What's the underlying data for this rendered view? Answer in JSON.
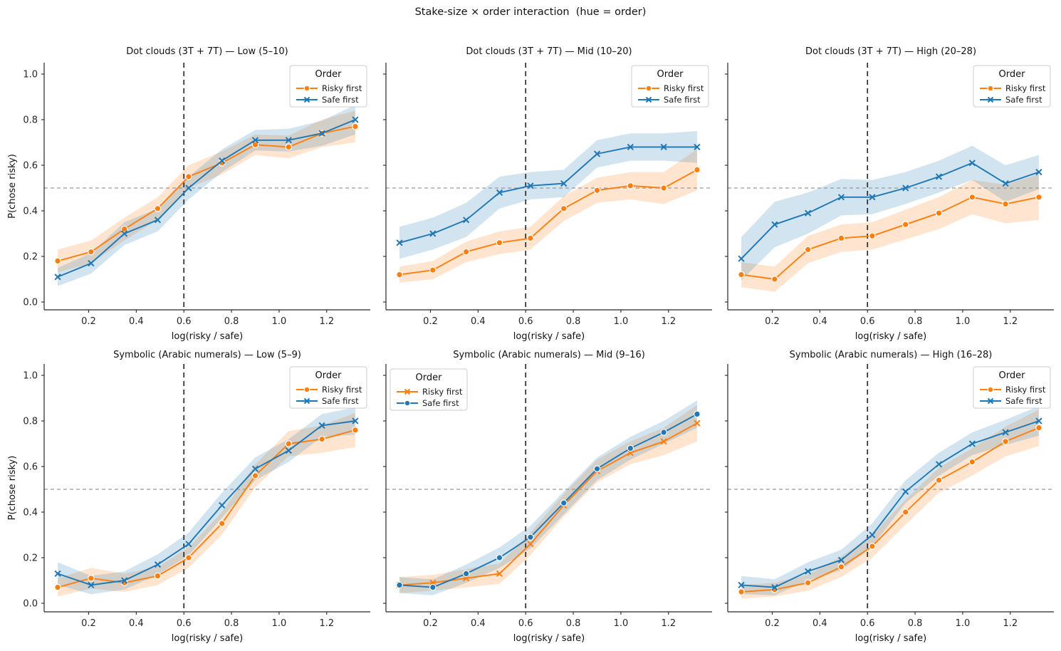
{
  "figure": {
    "suptitle": "Stake-size × order interaction  (hue = order)",
    "xlabel": "log(risky / safe)",
    "ylabel": "P(chose risky)",
    "xtick_values": [
      0.2,
      0.4,
      0.6,
      0.8,
      1.0,
      1.2
    ],
    "xtick_labels": [
      "0.2",
      "0.4",
      "0.6",
      "0.8",
      "1.0",
      "1.2"
    ],
    "ytick_values": [
      0.0,
      0.2,
      0.4,
      0.6,
      0.8,
      1.0
    ],
    "ytick_labels": [
      "0.0",
      "0.2",
      "0.4",
      "0.6",
      "0.8",
      "1.0"
    ],
    "xlim": [
      0.013,
      1.383
    ],
    "ylim": [
      -0.034,
      1.05
    ],
    "hline": 0.5,
    "vline": 0.6,
    "grid": false,
    "legend_title": "Order",
    "legend_items": [
      "Risky first",
      "Safe first"
    ],
    "colors": {
      "risky_first": "#ff7f0e",
      "safe_first": "#1f77b4",
      "vline": "#2b2b2b",
      "hline": "#999999",
      "spine": "#262626"
    }
  },
  "chart_data": [
    {
      "type": "line",
      "title": "Dot clouds (3T + 7T) — Low (5–10)",
      "xlabel": "log(risky / safe)",
      "ylabel": "P(chose risky)",
      "legend_loc": "upper right",
      "x": [
        0.07,
        0.21,
        0.35,
        0.49,
        0.62,
        0.76,
        0.9,
        1.04,
        1.18,
        1.32
      ],
      "series": [
        {
          "name": "Risky first",
          "color": "#ff7f0e",
          "marker": "o",
          "values": [
            0.18,
            0.22,
            0.32,
            0.41,
            0.55,
            0.61,
            0.69,
            0.68,
            0.74,
            0.77
          ],
          "ci_halfwidth": [
            0.05,
            0.05,
            0.05,
            0.05,
            0.05,
            0.05,
            0.045,
            0.05,
            0.06,
            0.07
          ]
        },
        {
          "name": "Safe first",
          "color": "#1f77b4",
          "marker": "x",
          "values": [
            0.11,
            0.17,
            0.3,
            0.36,
            0.5,
            0.62,
            0.71,
            0.71,
            0.74,
            0.8
          ],
          "ci_halfwidth": [
            0.04,
            0.045,
            0.05,
            0.05,
            0.05,
            0.05,
            0.045,
            0.05,
            0.055,
            0.065
          ]
        }
      ]
    },
    {
      "type": "line",
      "title": "Dot clouds (3T + 7T) — Mid (10–20)",
      "xlabel": "log(risky / safe)",
      "ylabel": "P(chose risky)",
      "legend_loc": "upper right",
      "x": [
        0.07,
        0.21,
        0.35,
        0.49,
        0.62,
        0.76,
        0.9,
        1.04,
        1.18,
        1.32
      ],
      "series": [
        {
          "name": "Risky first",
          "color": "#ff7f0e",
          "marker": "o",
          "values": [
            0.12,
            0.14,
            0.22,
            0.26,
            0.28,
            0.41,
            0.49,
            0.51,
            0.5,
            0.58
          ],
          "ci_halfwidth": [
            0.035,
            0.04,
            0.045,
            0.05,
            0.05,
            0.055,
            0.055,
            0.06,
            0.07,
            0.09
          ]
        },
        {
          "name": "Safe first",
          "color": "#1f77b4",
          "marker": "x",
          "values": [
            0.26,
            0.3,
            0.36,
            0.48,
            0.51,
            0.52,
            0.65,
            0.68,
            0.68,
            0.68
          ],
          "ci_halfwidth": [
            0.07,
            0.07,
            0.075,
            0.07,
            0.06,
            0.06,
            0.06,
            0.06,
            0.06,
            0.07
          ]
        }
      ]
    },
    {
      "type": "line",
      "title": "Dot clouds (3T + 7T) — High (20–28)",
      "xlabel": "log(risky / safe)",
      "ylabel": "P(chose risky)",
      "legend_loc": "upper right",
      "x": [
        0.07,
        0.21,
        0.35,
        0.49,
        0.62,
        0.76,
        0.9,
        1.04,
        1.18,
        1.32
      ],
      "series": [
        {
          "name": "Risky first",
          "color": "#ff7f0e",
          "marker": "o",
          "values": [
            0.12,
            0.1,
            0.23,
            0.28,
            0.29,
            0.34,
            0.39,
            0.46,
            0.43,
            0.46
          ],
          "ci_halfwidth": [
            0.055,
            0.055,
            0.06,
            0.06,
            0.06,
            0.065,
            0.07,
            0.075,
            0.085,
            0.1
          ]
        },
        {
          "name": "Safe first",
          "color": "#1f77b4",
          "marker": "x",
          "values": [
            0.19,
            0.34,
            0.39,
            0.46,
            0.46,
            0.5,
            0.55,
            0.61,
            0.52,
            0.57
          ],
          "ci_halfwidth": [
            0.095,
            0.1,
            0.09,
            0.08,
            0.075,
            0.07,
            0.07,
            0.075,
            0.08,
            0.075
          ]
        }
      ]
    },
    {
      "type": "line",
      "title": "Symbolic (Arabic numerals) — Low (5–9)",
      "xlabel": "log(risky / safe)",
      "ylabel": "P(chose risky)",
      "legend_loc": "upper right",
      "x": [
        0.07,
        0.21,
        0.35,
        0.49,
        0.62,
        0.76,
        0.9,
        1.04,
        1.18,
        1.32
      ],
      "series": [
        {
          "name": "Risky first",
          "color": "#ff7f0e",
          "marker": "o",
          "values": [
            0.07,
            0.11,
            0.09,
            0.12,
            0.2,
            0.35,
            0.56,
            0.7,
            0.72,
            0.76
          ],
          "ci_halfwidth": [
            0.04,
            0.045,
            0.04,
            0.04,
            0.045,
            0.05,
            0.05,
            0.055,
            0.06,
            0.075
          ]
        },
        {
          "name": "Safe first",
          "color": "#1f77b4",
          "marker": "x",
          "values": [
            0.13,
            0.08,
            0.1,
            0.17,
            0.26,
            0.43,
            0.59,
            0.67,
            0.78,
            0.8
          ],
          "ci_halfwidth": [
            0.05,
            0.04,
            0.04,
            0.045,
            0.05,
            0.055,
            0.05,
            0.05,
            0.05,
            0.06
          ]
        }
      ]
    },
    {
      "type": "line",
      "title": "Symbolic (Arabic numerals) — Mid (9–16)",
      "xlabel": "log(risky / safe)",
      "ylabel": "P(chose risky)",
      "legend_loc": "upper left",
      "x": [
        0.07,
        0.21,
        0.35,
        0.49,
        0.62,
        0.76,
        0.9,
        1.04,
        1.18,
        1.32
      ],
      "series": [
        {
          "name": "Risky first",
          "color": "#ff7f0e",
          "marker": "x",
          "values": [
            0.08,
            0.09,
            0.11,
            0.13,
            0.26,
            0.43,
            0.58,
            0.66,
            0.71,
            0.79
          ],
          "ci_halfwidth": [
            0.035,
            0.035,
            0.04,
            0.045,
            0.05,
            0.05,
            0.05,
            0.05,
            0.06,
            0.08
          ]
        },
        {
          "name": "Safe first",
          "color": "#1f77b4",
          "marker": "o",
          "values": [
            0.08,
            0.07,
            0.13,
            0.2,
            0.29,
            0.44,
            0.59,
            0.68,
            0.75,
            0.83
          ],
          "ci_halfwidth": [
            0.035,
            0.035,
            0.04,
            0.045,
            0.05,
            0.05,
            0.05,
            0.05,
            0.05,
            0.06
          ]
        }
      ]
    },
    {
      "type": "line",
      "title": "Symbolic (Arabic numerals) — High (16–28)",
      "xlabel": "log(risky / safe)",
      "ylabel": "P(chose risky)",
      "legend_loc": "upper right",
      "x": [
        0.07,
        0.21,
        0.35,
        0.49,
        0.62,
        0.76,
        0.9,
        1.04,
        1.18,
        1.32
      ],
      "series": [
        {
          "name": "Risky first",
          "color": "#ff7f0e",
          "marker": "o",
          "values": [
            0.05,
            0.06,
            0.09,
            0.16,
            0.25,
            0.4,
            0.54,
            0.62,
            0.71,
            0.77
          ],
          "ci_halfwidth": [
            0.03,
            0.03,
            0.035,
            0.045,
            0.05,
            0.055,
            0.055,
            0.06,
            0.065,
            0.08
          ]
        },
        {
          "name": "Safe first",
          "color": "#1f77b4",
          "marker": "x",
          "values": [
            0.08,
            0.07,
            0.14,
            0.19,
            0.3,
            0.49,
            0.61,
            0.7,
            0.75,
            0.8
          ],
          "ci_halfwidth": [
            0.04,
            0.035,
            0.04,
            0.045,
            0.05,
            0.05,
            0.05,
            0.05,
            0.055,
            0.065
          ]
        }
      ]
    }
  ]
}
